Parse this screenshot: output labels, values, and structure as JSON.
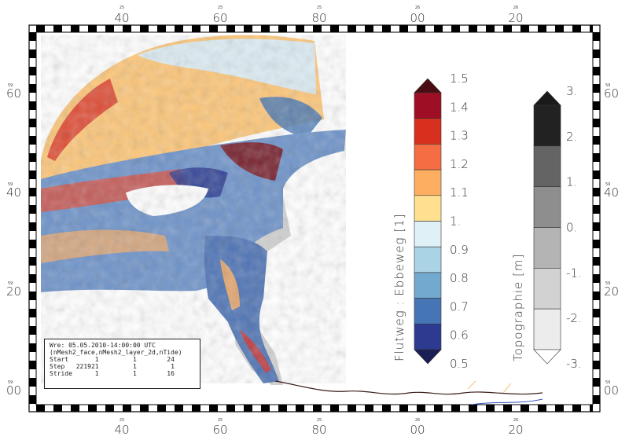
{
  "map": {
    "top_ticks": [
      {
        "label": "40",
        "sub": "25"
      },
      {
        "label": "60",
        "sub": "25"
      },
      {
        "label": "80",
        "sub": "25"
      },
      {
        "label": "00",
        "sub": "26"
      },
      {
        "label": "20",
        "sub": "26"
      }
    ],
    "bottom_ticks": [
      {
        "label": "40",
        "sub": "25"
      },
      {
        "label": "60",
        "sub": "25"
      },
      {
        "label": "80",
        "sub": "25"
      },
      {
        "label": "00",
        "sub": "26"
      },
      {
        "label": "20",
        "sub": "26"
      }
    ],
    "left_ticks": [
      {
        "label": "60",
        "sub": "59"
      },
      {
        "label": "40",
        "sub": "59"
      },
      {
        "label": "20",
        "sub": "59"
      },
      {
        "label": "00",
        "sub": "59"
      }
    ],
    "right_ticks": [
      {
        "label": "60",
        "sub": "59"
      },
      {
        "label": "40",
        "sub": "59"
      },
      {
        "label": "20",
        "sub": "59"
      },
      {
        "label": "00",
        "sub": "59"
      }
    ]
  },
  "colorbar_ratio": {
    "title": "Flutweg : Ebbeweg [1]",
    "labels": [
      "1.5",
      "1.4",
      "1.3",
      "1.2",
      "1.1",
      "1.",
      "0.9",
      "0.8",
      "0.7",
      "0.6",
      "0.5"
    ],
    "colors": [
      "#4a0d12",
      "#9e0f25",
      "#d7301f",
      "#f46d43",
      "#fdae61",
      "#fee090",
      "#e0f0f7",
      "#abd3e6",
      "#74a9cf",
      "#4575b4",
      "#2c3a8f",
      "#1a1e55"
    ]
  },
  "colorbar_topo": {
    "title": "Topographie [m]",
    "labels": [
      "3.",
      "2.",
      "1.",
      "0.",
      "-1.",
      "-2.",
      "-3."
    ],
    "colors": [
      "#1a1a1a",
      "#222222",
      "#646464",
      "#8e8e8e",
      "#b4b4b4",
      "#d2d2d2",
      "#ececec",
      "#ffffff"
    ]
  },
  "info": {
    "line1": "Wre: 05.05.2010-14:00:00 UTC",
    "line2": "(nMesh2_face,nMesh2_layer_2d,nTide)",
    "line3": "Start       1         1        24",
    "line4": "Step   221921         1         1",
    "line5": "Stride      1         1        16"
  }
}
